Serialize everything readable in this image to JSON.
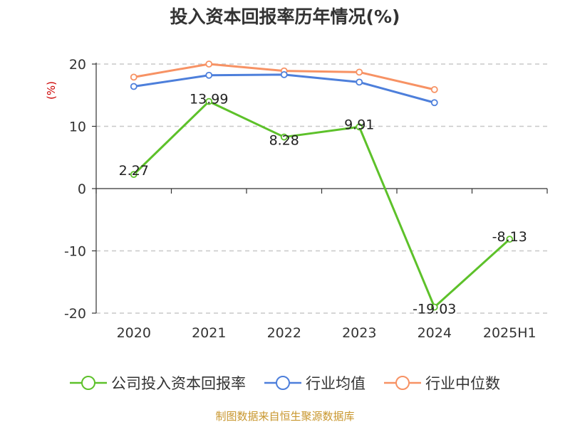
{
  "title": "投入资本回报率历年情况(%)",
  "source_note": "制图数据来自恒生聚源数据库",
  "chart_data": {
    "type": "line",
    "title": "投入资本回报率历年情况(%)",
    "ylabel": "(%)",
    "xlabel": "",
    "categories": [
      "2020",
      "2021",
      "2022",
      "2023",
      "2024",
      "2025H1"
    ],
    "ylim": [
      -20,
      20
    ],
    "yticks": [
      20,
      10,
      0,
      -10,
      -20
    ],
    "grid": true,
    "legend_position": "bottom",
    "series": [
      {
        "name": "公司投入资本回报率",
        "color": "#5dc12a",
        "values": [
          2.27,
          13.99,
          8.28,
          9.91,
          -19.03,
          -8.13
        ],
        "labels": [
          "2.27",
          "13.99",
          "8.28",
          "9.91",
          "-19.03",
          "-8.13"
        ]
      },
      {
        "name": "行业均值",
        "color": "#4d7fdb",
        "values": [
          16.4,
          18.2,
          18.3,
          17.1,
          13.8,
          null
        ]
      },
      {
        "name": "行业中位数",
        "color": "#f79264",
        "values": [
          17.9,
          20.0,
          18.9,
          18.7,
          15.9,
          null
        ]
      }
    ]
  }
}
